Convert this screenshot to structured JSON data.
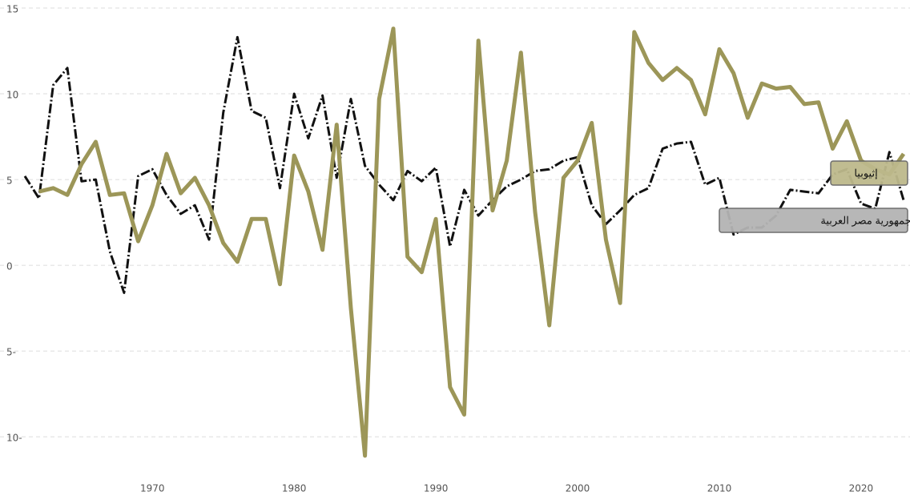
{
  "chart_data": {
    "type": "line",
    "x": [
      1961,
      1962,
      1963,
      1964,
      1965,
      1966,
      1967,
      1968,
      1969,
      1970,
      1971,
      1972,
      1973,
      1974,
      1975,
      1976,
      1977,
      1978,
      1979,
      1980,
      1981,
      1982,
      1983,
      1984,
      1985,
      1986,
      1987,
      1988,
      1989,
      1990,
      1991,
      1992,
      1993,
      1994,
      1995,
      1996,
      1997,
      1998,
      1999,
      2000,
      2001,
      2002,
      2003,
      2004,
      2005,
      2006,
      2007,
      2008,
      2009,
      2010,
      2011,
      2012,
      2013,
      2014,
      2015,
      2016,
      2017,
      2018,
      2019,
      2020,
      2021,
      2022,
      2023
    ],
    "series": [
      {
        "name": "جمهورية مصر العربية",
        "color": "#111111",
        "label_fill": "#b4b4b4",
        "dash": true,
        "values": [
          5.2,
          3.9,
          10.5,
          11.5,
          4.9,
          5.0,
          0.8,
          -1.6,
          5.2,
          5.6,
          4.1,
          3.0,
          3.5,
          1.5,
          8.9,
          13.3,
          9.0,
          8.6,
          4.5,
          10.0,
          7.4,
          9.9,
          5.1,
          9.7,
          5.8,
          4.7,
          3.8,
          5.5,
          4.9,
          5.7,
          1.1,
          4.4,
          2.9,
          3.8,
          4.6,
          5.0,
          5.5,
          5.6,
          6.1,
          6.3,
          3.5,
          2.4,
          3.2,
          4.1,
          4.5,
          6.8,
          7.1,
          7.2,
          4.7,
          5.1,
          1.8,
          2.2,
          2.2,
          2.9,
          4.4,
          4.3,
          4.2,
          5.3,
          5.6,
          3.6,
          3.3,
          6.6,
          3.8
        ]
      },
      {
        "name": "إثيوبيا",
        "color": "#9c9658",
        "label_fill": "#bdb98c",
        "dash": false,
        "values": [
          null,
          4.3,
          4.5,
          4.1,
          5.9,
          7.2,
          4.1,
          4.2,
          1.4,
          3.5,
          6.5,
          4.2,
          5.1,
          3.5,
          1.3,
          0.2,
          2.7,
          2.7,
          -1.1,
          6.4,
          4.3,
          0.9,
          8.2,
          -2.5,
          -11.1,
          9.7,
          13.8,
          0.5,
          -0.4,
          2.7,
          -7.1,
          -8.7,
          13.1,
          3.2,
          6.1,
          12.4,
          3.1,
          -3.5,
          5.1,
          6.1,
          8.3,
          1.5,
          -2.2,
          13.6,
          11.8,
          10.8,
          11.5,
          10.8,
          8.8,
          12.6,
          11.2,
          8.6,
          10.6,
          10.3,
          10.4,
          9.4,
          9.5,
          6.8,
          8.4,
          6.1,
          5.6,
          5.3,
          6.5
        ]
      }
    ],
    "xlim": [
      1961,
      2023
    ],
    "xticks": [
      1970,
      1980,
      1990,
      2000,
      2010,
      2020
    ],
    "ylim": [
      -12,
      15
    ],
    "yticks": [
      {
        "value": -10,
        "label": "10-"
      },
      {
        "value": -5,
        "label": "5-"
      },
      0,
      5,
      10,
      15
    ],
    "grid": true
  }
}
